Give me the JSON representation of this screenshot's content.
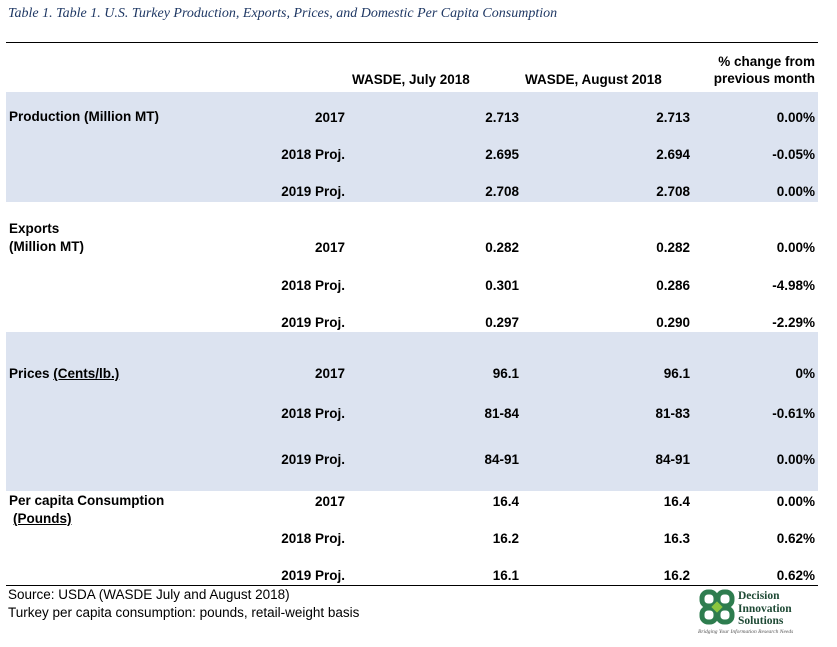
{
  "caption": "Table 1. Table 1. U.S. Turkey Production, Exports, Prices, and Domestic Per Capita Consumption",
  "headers": {
    "july": "WASDE, July 2018",
    "august": "WASDE, August 2018",
    "pct_line1": "% change from",
    "pct_line2": "previous month"
  },
  "sections": {
    "production": {
      "label": "Production (Million MT)",
      "rows": [
        {
          "year": "2017",
          "july": "2.713",
          "august": "2.713",
          "pct": "0.00%"
        },
        {
          "year": "2018 Proj.",
          "july": "2.695",
          "august": "2.694",
          "pct": "-0.05%"
        },
        {
          "year": "2019 Proj.",
          "july": "2.708",
          "august": "2.708",
          "pct": "0.00%"
        }
      ]
    },
    "exports": {
      "label_line1": "Exports",
      "label_line2": "(Million MT)",
      "rows": [
        {
          "year": "2017",
          "july": "0.282",
          "august": "0.282",
          "pct": "0.00%"
        },
        {
          "year": "2018 Proj.",
          "july": "0.301",
          "august": "0.286",
          "pct": "-4.98%"
        },
        {
          "year": "2019 Proj.",
          "july": "0.297",
          "august": "0.290",
          "pct": "-2.29%"
        }
      ]
    },
    "prices": {
      "label_prefix": "Prices ",
      "label_unit": "(Cents/lb.)",
      "rows": [
        {
          "year": "2017",
          "july": "96.1",
          "august": "96.1",
          "pct": "0%"
        },
        {
          "year": "2018 Proj.",
          "july": "81-84",
          "august": "81-83",
          "pct": "-0.61%"
        },
        {
          "year": "2019 Proj.",
          "july": "84-91",
          "august": "84-91",
          "pct": "0.00%"
        }
      ]
    },
    "consumption": {
      "label_line1": "Per capita Consumption",
      "label_unit": "(Pounds)",
      "rows": [
        {
          "year": "2017",
          "july": "16.4",
          "august": "16.4",
          "pct": "0.00%"
        },
        {
          "year": "2018 Proj.",
          "july": "16.2",
          "august": "16.3",
          "pct": "0.62%"
        },
        {
          "year": "2019 Proj.",
          "july": "16.1",
          "august": "16.2",
          "pct": "0.62%"
        }
      ]
    }
  },
  "footer": {
    "source": "Source: USDA (WASDE July and August 2018)",
    "note": "Turkey per capita consumption: pounds, retail-weight basis"
  },
  "logo": {
    "line1": "Decision",
    "line2": "Innovation",
    "line3": "Solutions",
    "tagline": "Bridging Your Information Research Needs",
    "color": "#2e7d4f"
  },
  "band_color": "#dce3f0"
}
